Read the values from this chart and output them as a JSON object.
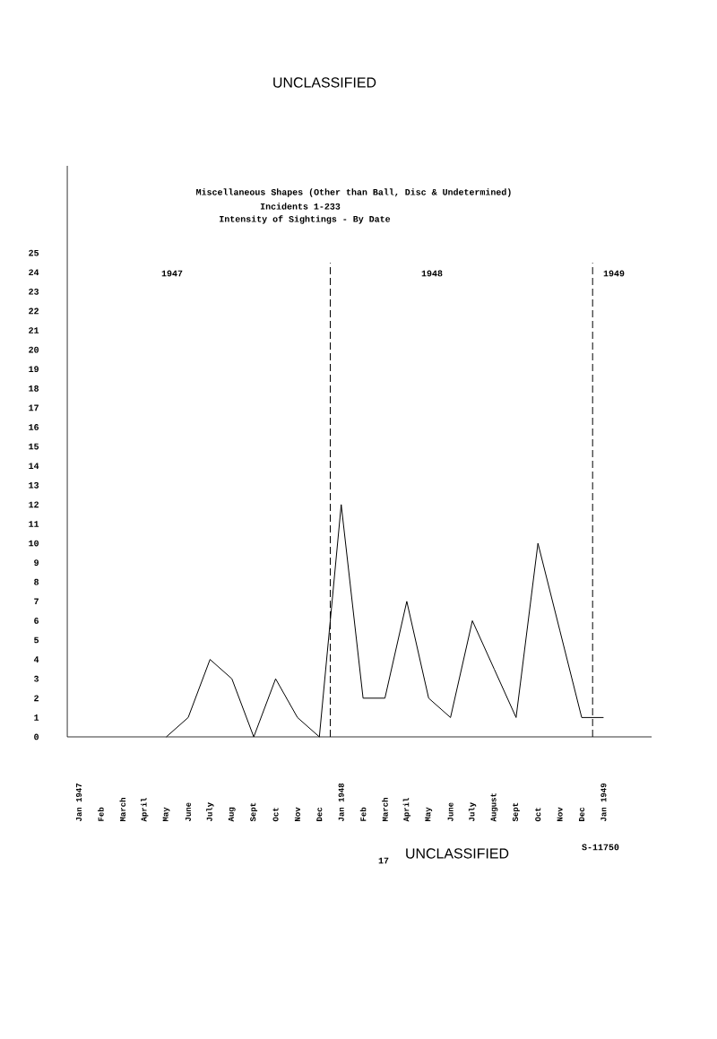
{
  "chart_data": {
    "type": "line",
    "title": "Miscellaneous Shapes (Other than Ball, Disc & Undetermined)",
    "subtitle": "Incidents 1-233",
    "categories": [
      "Jan 1947",
      "Feb",
      "March",
      "April",
      "May",
      "June",
      "July",
      "Aug",
      "Sept",
      "Oct",
      "Nov",
      "Dec",
      "Jan 1948",
      "Feb",
      "March",
      "April",
      "May",
      "June",
      "July",
      "August",
      "Sept",
      "Oct",
      "Nov",
      "Dec",
      "Jan 1949"
    ],
    "values": [
      null,
      null,
      null,
      null,
      0,
      1,
      4,
      3,
      0,
      3,
      1,
      0,
      12,
      2,
      2,
      7,
      2,
      1,
      6,
      3.5,
      1,
      10,
      5.5,
      1,
      1
    ],
    "color": "#000000",
    "line_style": "solid",
    "ylim": [
      0,
      29.5
    ],
    "yticks": [
      0,
      1,
      2,
      3,
      4,
      5,
      6,
      7,
      8,
      9,
      10,
      11,
      12,
      13,
      14,
      15,
      16,
      17,
      18,
      19,
      20,
      21,
      22,
      23,
      24,
      25
    ],
    "annotations": [
      "UNCLASSIFIED",
      "Intensity of Sightings - By Date",
      "1947",
      "17",
      "UNCLASSIFIED",
      "S-11750",
      "1948",
      "1949"
    ]
  }
}
